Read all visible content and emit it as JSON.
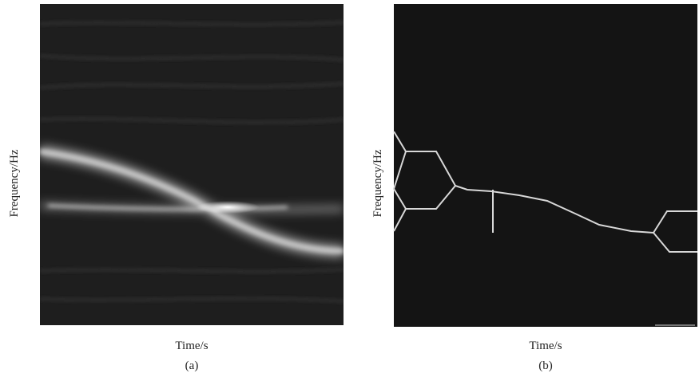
{
  "panels": [
    {
      "ylabel": "Frequency/Hz",
      "xlabel": "Time/s",
      "caption": "(a)"
    },
    {
      "ylabel": "Frequency/Hz",
      "xlabel": "Time/s",
      "caption": "(b)"
    }
  ]
}
